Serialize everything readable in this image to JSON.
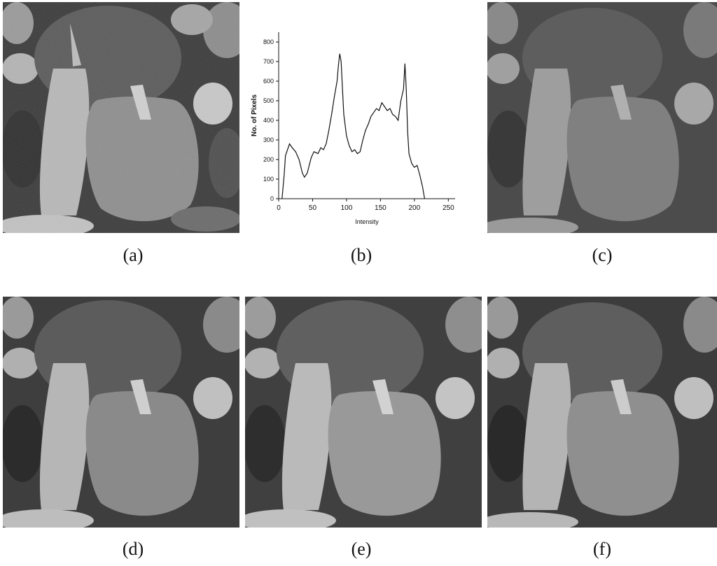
{
  "figure": {
    "captions": [
      "(a)",
      "(b)",
      "(c)",
      "(d)",
      "(e)",
      "(f)"
    ]
  },
  "chart_data": {
    "type": "line",
    "xlabel": "Intensity",
    "ylabel": "No. of Pixels",
    "xlim": [
      0,
      260
    ],
    "ylim": [
      0,
      850
    ],
    "x_ticks": [
      0,
      50,
      100,
      150,
      200,
      250
    ],
    "y_ticks": [
      0,
      100,
      200,
      300,
      400,
      500,
      600,
      700,
      800
    ],
    "grid": false,
    "series": [
      {
        "x": [
          5,
          8,
          10,
          13,
          16,
          20,
          25,
          30,
          35,
          38,
          42,
          48,
          52,
          58,
          62,
          66,
          70,
          74,
          78,
          82,
          86,
          88,
          90,
          92,
          94,
          96,
          100,
          104,
          108,
          112,
          116,
          120,
          124,
          128,
          132,
          136,
          140,
          144,
          148,
          152,
          156,
          160,
          164,
          168,
          172,
          176,
          180,
          184,
          186,
          188,
          190,
          192,
          196,
          200,
          204,
          208,
          212,
          215
        ],
        "y": [
          0,
          120,
          220,
          250,
          280,
          260,
          240,
          200,
          130,
          110,
          130,
          210,
          240,
          230,
          260,
          250,
          280,
          350,
          430,
          520,
          600,
          680,
          740,
          700,
          560,
          430,
          320,
          270,
          240,
          250,
          230,
          240,
          300,
          350,
          380,
          420,
          440,
          460,
          450,
          490,
          470,
          450,
          460,
          430,
          420,
          400,
          500,
          560,
          690,
          560,
          340,
          230,
          180,
          160,
          170,
          120,
          60,
          0
        ]
      }
    ]
  }
}
